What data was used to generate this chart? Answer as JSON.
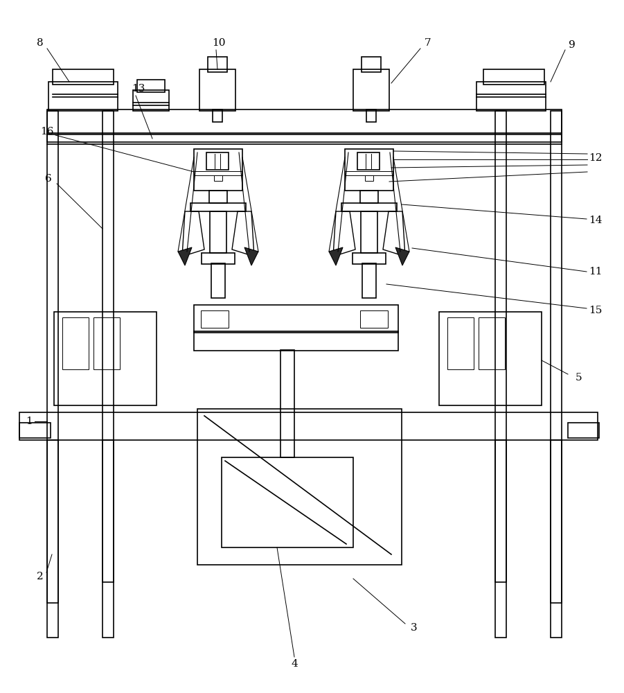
{
  "bg": "#ffffff",
  "lc": "#000000",
  "lw": 1.2,
  "tlw": 0.7,
  "fig_w": 9.01,
  "fig_h": 10.0,
  "dpi": 100,
  "labels": [
    "1",
    "2",
    "3",
    "4",
    "5",
    "6",
    "7",
    "8",
    "9",
    "10",
    "11",
    "12",
    "13",
    "14",
    "15",
    "16"
  ]
}
